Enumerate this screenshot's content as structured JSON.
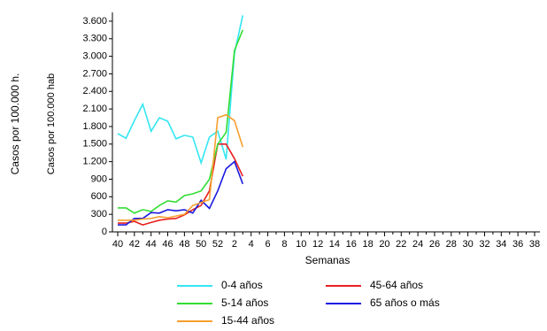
{
  "chart_data": {
    "type": "line",
    "y_label_outer": "Casos por 100.000 h.",
    "y_label": "Casos por 100.000 hab",
    "x_label": "Semanas",
    "categories": [
      "40",
      null,
      "42",
      null,
      "44",
      null,
      "46",
      null,
      "48",
      null,
      "50",
      null,
      "52",
      null,
      "2",
      null,
      "4",
      null,
      "6",
      null,
      "8",
      null,
      "10",
      null,
      "12",
      null,
      "14",
      null,
      "16",
      null,
      "18",
      null,
      "20",
      null,
      "22",
      null,
      "24",
      null,
      "26",
      null,
      "28",
      null,
      "30",
      null,
      "32",
      null,
      "34",
      null,
      "36",
      null,
      "38"
    ],
    "series": [
      {
        "name": "0-4 años",
        "color": "#33e6f2",
        "values": [
          1680,
          1600,
          1900,
          2180,
          1720,
          1950,
          1890,
          1590,
          1650,
          1620,
          1180,
          1620,
          1720,
          1240,
          3050,
          3700,
          null,
          null,
          null,
          null,
          null,
          null,
          null,
          null,
          null,
          null,
          null,
          null,
          null,
          null,
          null,
          null,
          null,
          null,
          null,
          null,
          null,
          null,
          null,
          null,
          null,
          null,
          null,
          null,
          null,
          null,
          null,
          null,
          null,
          null,
          null
        ]
      },
      {
        "name": "45-64 años",
        "color": "#e82020",
        "values": [
          150,
          150,
          180,
          120,
          160,
          200,
          220,
          230,
          290,
          380,
          450,
          700,
          1500,
          1500,
          1250,
          950,
          null,
          null,
          null,
          null,
          null,
          null,
          null,
          null,
          null,
          null,
          null,
          null,
          null,
          null,
          null,
          null,
          null,
          null,
          null,
          null,
          null,
          null,
          null,
          null,
          null,
          null,
          null,
          null,
          null,
          null,
          null,
          null,
          null,
          null,
          null
        ]
      },
      {
        "name": "5-14 años",
        "color": "#33dd33",
        "values": [
          410,
          410,
          320,
          380,
          350,
          450,
          530,
          510,
          620,
          650,
          700,
          900,
          1500,
          1700,
          3100,
          3450,
          null,
          null,
          null,
          null,
          null,
          null,
          null,
          null,
          null,
          null,
          null,
          null,
          null,
          null,
          null,
          null,
          null,
          null,
          null,
          null,
          null,
          null,
          null,
          null,
          null,
          null,
          null,
          null,
          null,
          null,
          null,
          null,
          null,
          null,
          null
        ]
      },
      {
        "name": "65 años o más",
        "color": "#1a1ae0",
        "values": [
          120,
          120,
          230,
          230,
          330,
          320,
          380,
          360,
          380,
          320,
          540,
          400,
          700,
          1080,
          1200,
          820,
          null,
          null,
          null,
          null,
          null,
          null,
          null,
          null,
          null,
          null,
          null,
          null,
          null,
          null,
          null,
          null,
          null,
          null,
          null,
          null,
          null,
          null,
          null,
          null,
          null,
          null,
          null,
          null,
          null,
          null,
          null,
          null,
          null,
          null,
          null
        ]
      },
      {
        "name": "15-44 años",
        "color": "#f5a030",
        "values": [
          200,
          200,
          200,
          220,
          230,
          260,
          240,
          270,
          300,
          450,
          500,
          550,
          1950,
          2000,
          1900,
          1450,
          null,
          null,
          null,
          null,
          null,
          null,
          null,
          null,
          null,
          null,
          null,
          null,
          null,
          null,
          null,
          null,
          null,
          null,
          null,
          null,
          null,
          null,
          null,
          null,
          null,
          null,
          null,
          null,
          null,
          null,
          null,
          null,
          null,
          null,
          null
        ]
      }
    ],
    "ylim": [
      0,
      3750
    ],
    "yticks": [
      0,
      300,
      600,
      900,
      {
        "value": 1200,
        "label": "1.200"
      },
      {
        "value": 1500,
        "label": "1.500"
      },
      {
        "value": 1800,
        "label": "1.800"
      },
      {
        "value": 2100,
        "label": "2.100"
      },
      {
        "value": 2400,
        "label": "2.400"
      },
      {
        "value": 2700,
        "label": "2.700"
      },
      {
        "value": 3000,
        "label": "3.000"
      },
      {
        "value": 3300,
        "label": "3.300"
      },
      {
        "value": 3600,
        "label": "3.600"
      }
    ]
  }
}
